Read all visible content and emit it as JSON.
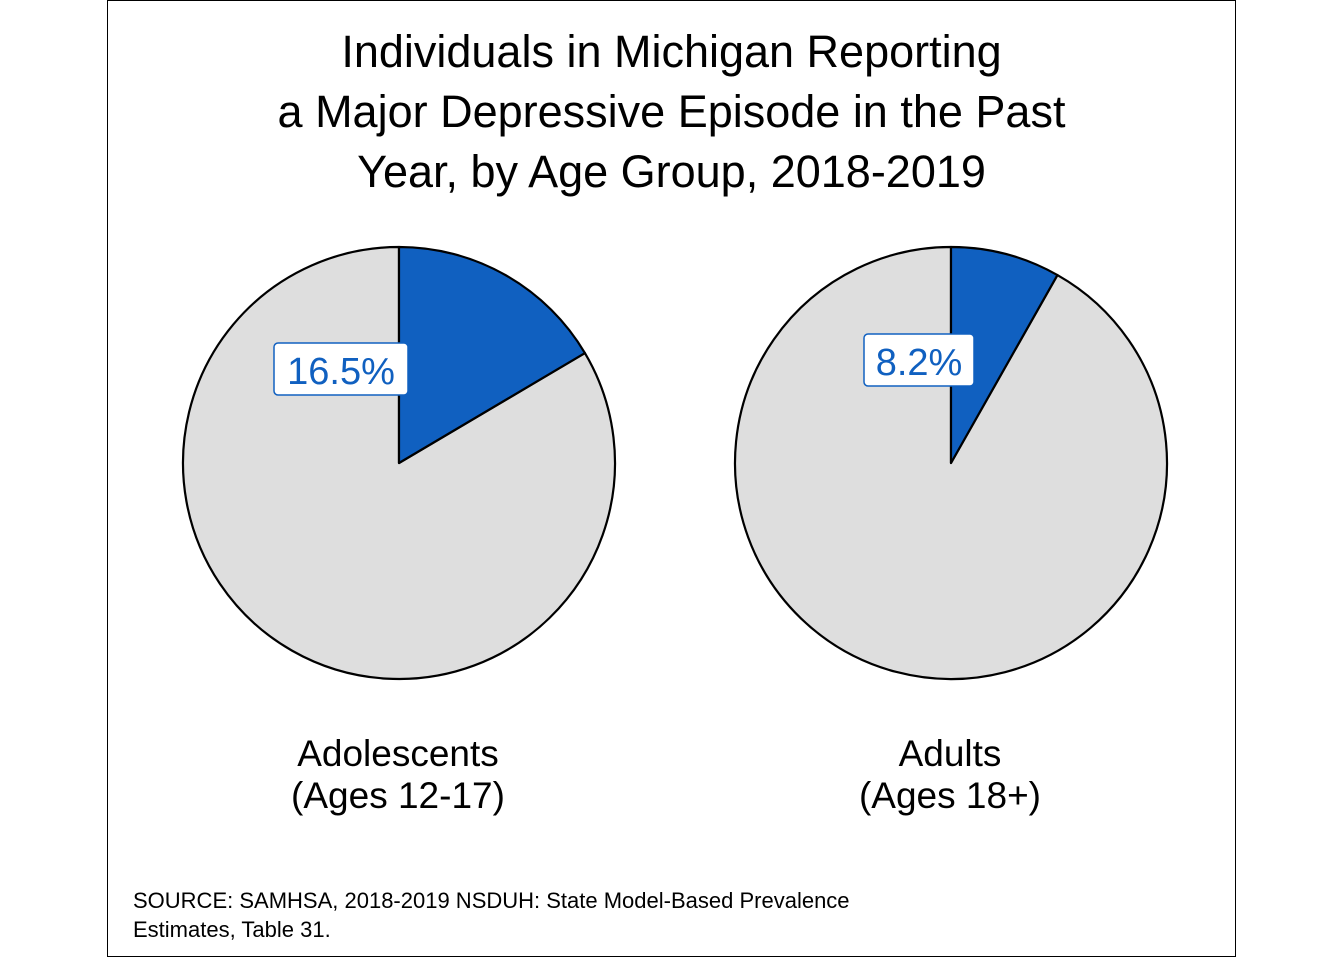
{
  "title_lines": [
    "Individuals in Michigan Reporting",
    "a Major Depressive Episode in the Past",
    "Year, by Age Group, 2018-2019"
  ],
  "source_lines": [
    "SOURCE: SAMHSA, 2018-2019 NSDUH: State Model-Based Prevalence",
    "Estimates, Table 31."
  ],
  "colors": {
    "highlight": "#1060C0",
    "remainder": "#DEDEDE",
    "outline": "#000000",
    "label_text": "#1060C0"
  },
  "chart_data": [
    {
      "type": "pie",
      "group_lines": [
        "Adolescents",
        "(Ages 12-17)"
      ],
      "value": 16.5,
      "value_label": "16.5%",
      "remainder": 83.5
    },
    {
      "type": "pie",
      "group_lines": [
        "Adults",
        "(Ages 18+)"
      ],
      "value": 8.2,
      "value_label": "8.2%",
      "remainder": 91.8
    }
  ]
}
